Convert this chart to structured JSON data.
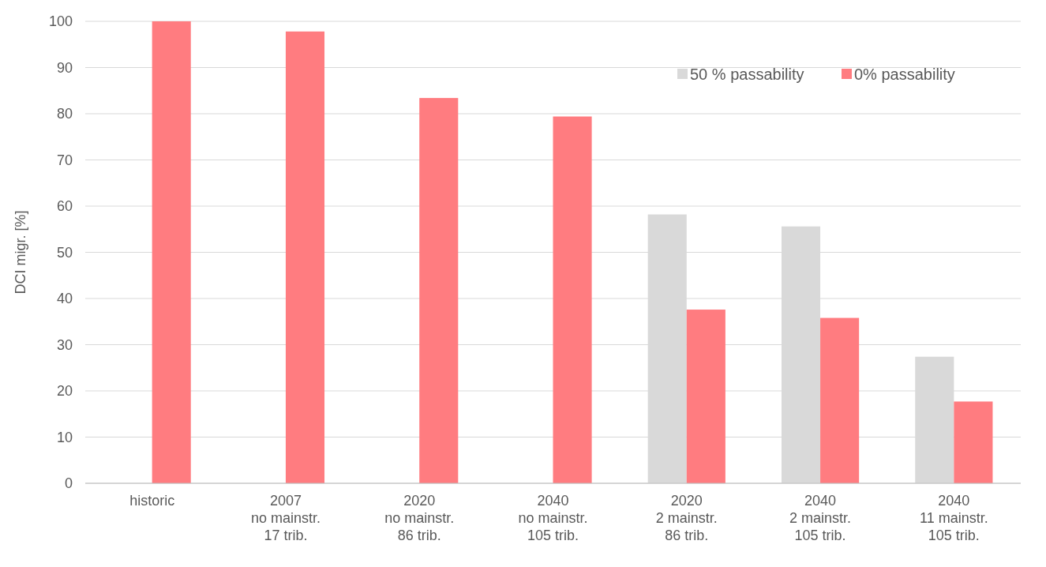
{
  "chart_data": {
    "type": "bar",
    "ylabel": "DCI migr. [%]",
    "categories": [
      "historic",
      "2007\nno mainstr.\n17 trib.",
      "2020\nno mainstr.\n86 trib.",
      "2040\nno mainstr.\n105 trib.",
      "2020\n2 mainstr.\n86 trib.",
      "2040\n2 mainstr.\n105 trib.",
      "2040\n11 mainstr.\n105 trib."
    ],
    "series": [
      {
        "name": "50 % passability",
        "color": "#d9d9d9",
        "values": [
          null,
          null,
          null,
          null,
          58.2,
          55.6,
          27.4
        ]
      },
      {
        "name": "0% passability",
        "color": "#ff7c80",
        "values": [
          100,
          97.8,
          83.4,
          79.4,
          37.6,
          35.8,
          17.7
        ]
      }
    ],
    "ylim": [
      0,
      100
    ],
    "yticks": [
      0,
      10,
      20,
      30,
      40,
      50,
      60,
      70,
      80,
      90,
      100
    ],
    "grid": "y",
    "legend": "top right"
  }
}
